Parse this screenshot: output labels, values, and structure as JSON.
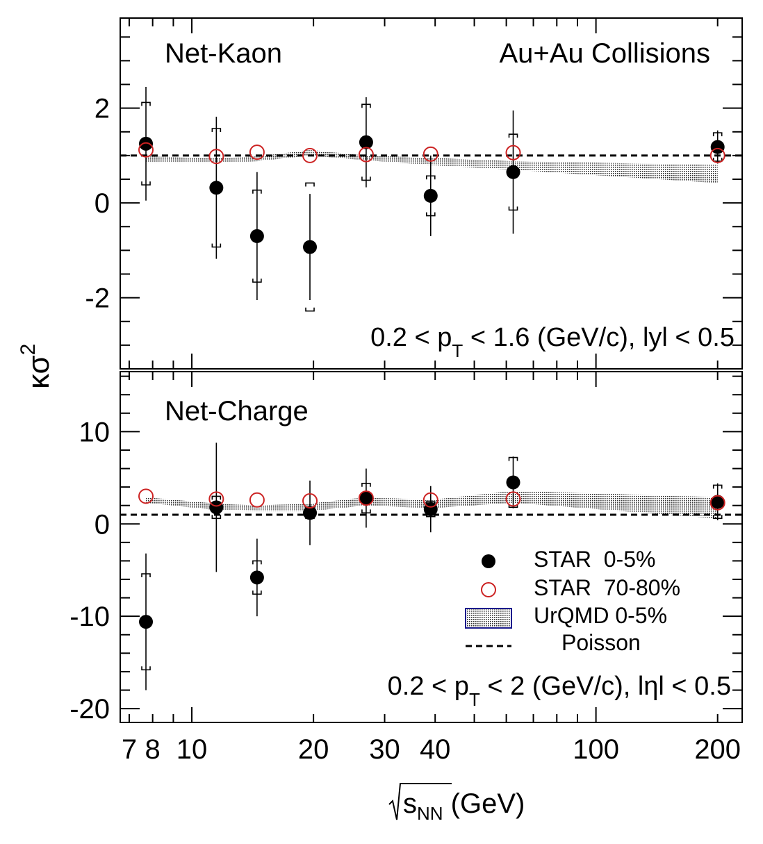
{
  "chart_data": [
    {
      "type": "scatter",
      "title": "Net-Kaon",
      "annotation_right": "Au+Au Collisions",
      "cut_label": {
        "pre": "0.2 < p",
        "sub": "T",
        "post": " < 1.6 (GeV/c), lyl < 0.5"
      },
      "ylim": [
        -3.5,
        3.9
      ],
      "yticks": [
        -2,
        0,
        2
      ],
      "ytick_labels": [
        "-2",
        "0",
        "2"
      ],
      "poisson": 1.0,
      "series": [
        {
          "name": "STAR 0-5%",
          "marker": "filled-circle",
          "color": "#000000",
          "x": [
            7.7,
            11.5,
            14.5,
            19.6,
            27,
            39,
            62.4,
            200
          ],
          "y": [
            1.25,
            0.32,
            -0.7,
            -0.93,
            1.28,
            0.15,
            0.65,
            1.18
          ],
          "stat_err": [
            1.2,
            1.5,
            1.35,
            1.12,
            0.95,
            0.85,
            1.3,
            0.35
          ],
          "sys_err": [
            0.87,
            1.25,
            0.97,
            1.35,
            0.8,
            0.42,
            0.8,
            0.3
          ]
        },
        {
          "name": "STAR 70-80%",
          "marker": "open-circle",
          "color": "#cc2222",
          "x": [
            7.7,
            11.5,
            14.5,
            19.6,
            27,
            39,
            62.4,
            200
          ],
          "y": [
            1.12,
            0.98,
            1.07,
            1.0,
            1.02,
            1.03,
            1.06,
            1.0
          ]
        }
      ],
      "urqmd_band": {
        "x": [
          7.7,
          11.5,
          14.5,
          19.6,
          27,
          39,
          62.4,
          200
        ],
        "low": [
          0.85,
          0.85,
          0.88,
          1.0,
          0.9,
          0.8,
          0.7,
          0.42
        ],
        "high": [
          0.98,
          0.95,
          0.98,
          1.12,
          1.0,
          0.95,
          0.88,
          0.8
        ]
      }
    },
    {
      "type": "scatter",
      "title": "Net-Charge",
      "cut_label": {
        "pre": "0.2 < p",
        "sub": "T",
        "post": " < 2 (GeV/c), lηl < 0.5"
      },
      "ylim": [
        -21.5,
        16.5
      ],
      "yticks": [
        -20,
        -10,
        0,
        10
      ],
      "ytick_labels": [
        "-20",
        "-10",
        "0",
        "10"
      ],
      "poisson": 1.0,
      "series": [
        {
          "name": "STAR 0-5%",
          "marker": "filled-circle",
          "color": "#000000",
          "x": [
            7.7,
            11.5,
            14.5,
            19.6,
            27,
            39,
            62.4,
            200
          ],
          "y": [
            -10.6,
            1.8,
            -5.8,
            1.2,
            2.8,
            1.6,
            4.5,
            2.4
          ],
          "stat_err": [
            7.4,
            7.0,
            4.2,
            3.5,
            3.2,
            2.5,
            2.8,
            2.0
          ],
          "sys_err": [
            5.2,
            1.2,
            1.8,
            0.6,
            1.6,
            0.8,
            2.7,
            1.8
          ]
        },
        {
          "name": "STAR 70-80%",
          "marker": "open-circle",
          "color": "#cc2222",
          "x": [
            7.7,
            11.5,
            14.5,
            19.6,
            27,
            39,
            62.4,
            200
          ],
          "y": [
            3.0,
            2.7,
            2.6,
            2.5,
            2.8,
            2.6,
            2.7,
            2.3
          ]
        }
      ],
      "urqmd_band": {
        "x": [
          7.7,
          11.5,
          14.5,
          19.6,
          27,
          39,
          62.4,
          200
        ],
        "low": [
          2.3,
          1.5,
          1.4,
          1.4,
          2.0,
          1.7,
          2.3,
          0.6
        ],
        "high": [
          2.9,
          2.2,
          2.0,
          2.2,
          2.9,
          2.6,
          3.6,
          2.9
        ]
      }
    }
  ],
  "xaxis": {
    "scale": "log",
    "xlim": [
      6.65,
      230
    ],
    "tick_values": [
      7,
      8,
      10,
      20,
      30,
      40,
      100,
      200
    ],
    "tick_labels": [
      "7",
      "8",
      "10",
      "20",
      "30",
      "40",
      "100",
      "200"
    ],
    "label_main": "s",
    "label_sub": "NN",
    "label_unit": " (GeV)"
  },
  "yaxis": {
    "label_main": "κσ",
    "label_sup": "2"
  },
  "legend": {
    "star_central": "STAR  0-5%",
    "star_peripheral": "STAR  70-80%",
    "urqmd": "UrQMD 0-5%",
    "poisson": "Poisson",
    "position": "bottom-right"
  },
  "colors": {
    "open_marker": "#cc2222",
    "legend_box_border": "#1a1a8c",
    "band": "#808080"
  }
}
